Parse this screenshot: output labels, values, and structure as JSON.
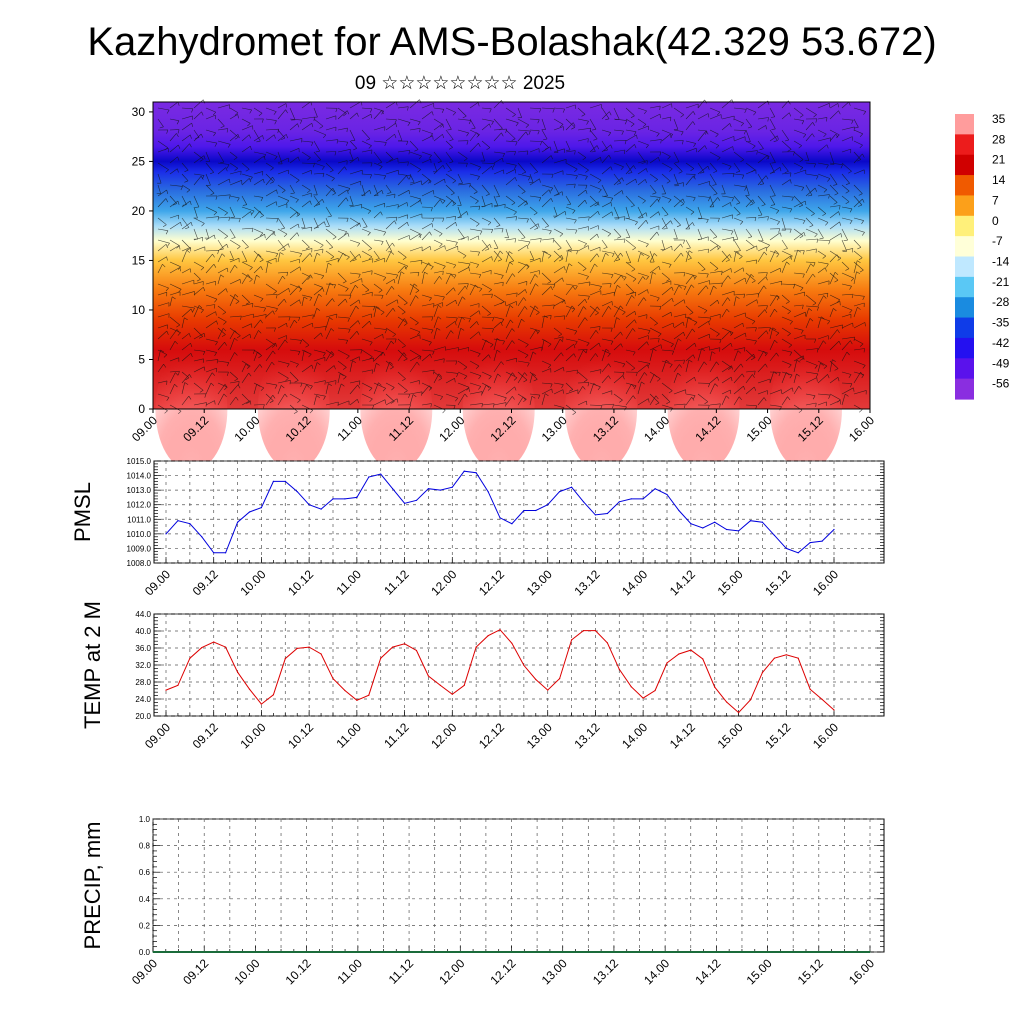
{
  "title": "Kazhydromet for AMS-Bolashak(42.329 53.672)",
  "subtitle": "09 ☆☆☆☆☆☆☆☆ 2025",
  "x_ticks": [
    "09.00",
    "09.12",
    "10.00",
    "10.12",
    "11.00",
    "11.12",
    "12.00",
    "12.12",
    "13.00",
    "13.12",
    "14.00",
    "14.12",
    "15.00",
    "15.12",
    "16.00"
  ],
  "chart_data": [
    {
      "type": "heatmap",
      "name": "cross-section",
      "ylim": [
        0,
        31
      ],
      "y_ticks": [
        "0",
        "5",
        "10",
        "15",
        "20",
        "25",
        "30"
      ],
      "colorbar": {
        "labels": [
          "35",
          "28",
          "21",
          "14",
          "7",
          "0",
          "-7",
          "-14",
          "-21",
          "-28",
          "-35",
          "-42",
          "-49",
          "-56"
        ],
        "colors": [
          "#ff9c9c",
          "#ec1c1c",
          "#d00000",
          "#f05a00",
          "#fca01a",
          "#fff07a",
          "#ffffd8",
          "#bfe8ff",
          "#5ac8f5",
          "#1a8be0",
          "#0f3ce8",
          "#2410f0",
          "#5a12ec",
          "#8a2ee0"
        ]
      },
      "layers": [
        {
          "altitude": 0,
          "color": "#e23a3a"
        },
        {
          "altitude": 6,
          "color": "#d60c0c"
        },
        {
          "altitude": 9,
          "color": "#e83a00"
        },
        {
          "altitude": 12,
          "color": "#f77a10"
        },
        {
          "altitude": 15,
          "color": "#ffc640"
        },
        {
          "altitude": 17,
          "color": "#ffffd0"
        },
        {
          "altitude": 18.5,
          "color": "#a8dcf8"
        },
        {
          "altitude": 20,
          "color": "#3ea6ea"
        },
        {
          "altitude": 22,
          "color": "#2a6ee0"
        },
        {
          "altitude": 24,
          "color": "#1a2ce8"
        },
        {
          "altitude": 25,
          "color": "#0a08c8"
        },
        {
          "altitude": 26.5,
          "color": "#4e18ea"
        },
        {
          "altitude": 28,
          "color": "#6a24e4"
        },
        {
          "altitude": 31,
          "color": "#7a2ae2"
        }
      ]
    },
    {
      "type": "line",
      "ylabel": "PMSL",
      "ylim": [
        1008.0,
        1015.0
      ],
      "y_ticks": [
        "1008.0",
        "1009.0",
        "1010.0",
        "1011.0",
        "1012.0",
        "1013.0",
        "1014.0",
        "1015.0"
      ],
      "color": "#0000dd",
      "x": [
        0,
        3,
        6,
        9,
        12,
        15,
        18,
        21,
        24,
        27,
        30,
        33,
        36,
        39,
        42,
        45,
        48,
        51,
        54,
        57,
        60,
        63,
        66,
        69,
        72,
        75,
        78,
        81,
        84,
        87,
        90,
        93,
        96,
        99,
        102,
        105,
        108,
        111,
        114,
        117,
        120,
        123,
        126,
        129,
        132,
        135,
        138,
        141,
        144,
        147,
        150,
        153,
        156,
        159,
        162,
        165,
        168
      ],
      "values": [
        1010.0,
        1010.9,
        1010.7,
        1009.8,
        1008.7,
        1008.7,
        1010.8,
        1011.5,
        1011.8,
        1013.6,
        1013.6,
        1012.9,
        1012.0,
        1011.7,
        1012.4,
        1012.4,
        1012.5,
        1013.9,
        1014.1,
        1013.1,
        1012.1,
        1012.3,
        1013.1,
        1013.0,
        1013.2,
        1014.3,
        1014.2,
        1012.9,
        1011.1,
        1010.7,
        1011.6,
        1011.6,
        1012.0,
        1012.9,
        1013.2,
        1012.2,
        1011.3,
        1011.4,
        1012.2,
        1012.4,
        1012.4,
        1013.1,
        1012.7,
        1011.6,
        1010.7,
        1010.4,
        1010.8,
        1010.3,
        1010.2,
        1010.9,
        1010.8,
        1009.9,
        1009.0,
        1008.7,
        1009.4,
        1009.5,
        1010.3
      ]
    },
    {
      "type": "line",
      "ylabel": "TEMP at 2 M",
      "ylim": [
        20.0,
        44.0
      ],
      "y_ticks": [
        "20.0",
        "24.0",
        "28.0",
        "32.0",
        "36.0",
        "40.0",
        "44.0"
      ],
      "color": "#dd0000",
      "x": [
        0,
        3,
        6,
        9,
        12,
        15,
        18,
        21,
        24,
        27,
        30,
        33,
        36,
        39,
        42,
        45,
        48,
        51,
        54,
        57,
        60,
        63,
        66,
        69,
        72,
        75,
        78,
        81,
        84,
        87,
        90,
        93,
        96,
        99,
        102,
        105,
        108,
        111,
        114,
        117,
        120,
        123,
        126,
        129,
        132,
        135,
        138,
        141,
        144,
        147,
        150,
        153,
        156,
        159,
        162,
        165,
        168
      ],
      "values": [
        26.1,
        27.2,
        33.6,
        36.1,
        37.4,
        36.2,
        30.3,
        26.3,
        22.8,
        25.0,
        33.5,
        35.9,
        36.2,
        34.6,
        28.8,
        26.0,
        23.7,
        24.9,
        33.6,
        36.2,
        37.0,
        35.4,
        29.4,
        27.2,
        25.1,
        27.2,
        36.2,
        38.9,
        40.3,
        37.1,
        31.9,
        28.6,
        26.1,
        28.8,
        37.9,
        40.1,
        40.1,
        37.2,
        31.0,
        26.9,
        24.2,
        26.0,
        32.5,
        34.6,
        35.5,
        33.4,
        26.8,
        23.3,
        20.8,
        23.8,
        30.2,
        33.6,
        34.4,
        33.6,
        26.3,
        23.9,
        21.4
      ]
    },
    {
      "type": "line",
      "ylabel": "PRECIP, mm",
      "ylim": [
        0.0,
        1.0
      ],
      "y_ticks": [
        "0.0",
        "0.2",
        "0.4",
        "0.6",
        "0.8",
        "1.0"
      ],
      "color": "#1a6b3a",
      "x": [
        0,
        168
      ],
      "values": [
        0,
        0
      ]
    }
  ]
}
